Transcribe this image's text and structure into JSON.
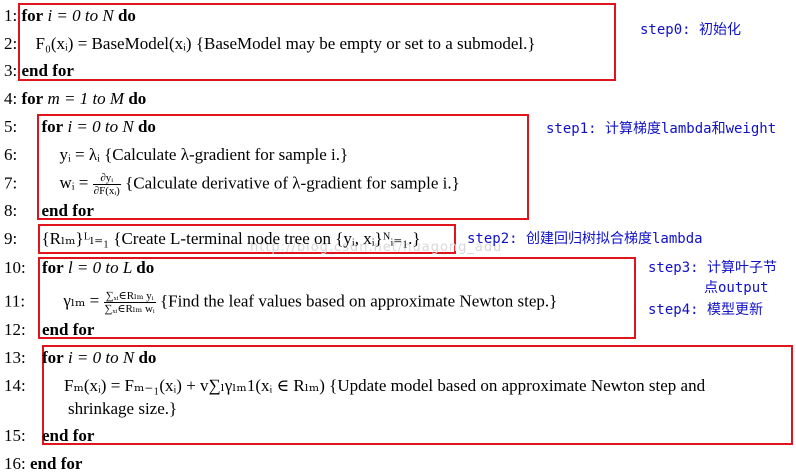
{
  "lines": [
    {
      "num": "1:",
      "text_kw1": "for",
      "text_body": " i = 0 to N ",
      "text_kw2": "do"
    },
    {
      "num": "2:",
      "text_body": "F₀(xᵢ) = BaseModel(xᵢ) {BaseModel may be empty or set to a submodel.}"
    },
    {
      "num": "3:",
      "text_kw1": "end for"
    },
    {
      "num": "4:",
      "text_kw1": "for",
      "text_body": " m = 1 to M ",
      "text_kw2": "do"
    },
    {
      "num": "5:",
      "text_kw1": "for",
      "text_body": " i  = 0 to N ",
      "text_kw2": "do"
    },
    {
      "num": "6:",
      "text_body": "yᵢ = λᵢ {Calculate λ-gradient for sample i.}"
    },
    {
      "num": "7:",
      "text_pre": "wᵢ = ",
      "frac_num": "∂yᵢ",
      "frac_den": "∂F(xᵢ)",
      "text_post": " {Calculate derivative of λ-gradient for sample i.}"
    },
    {
      "num": "8:",
      "text_kw1": "end for"
    },
    {
      "num": "9:",
      "text_body": "{Rₗₘ}ᴸₗ₌₁ {Create L-terminal node tree on {yᵢ, xᵢ}ᴺᵢ₌₁.}"
    },
    {
      "num": "10:",
      "text_kw1": "for",
      "text_body": " l = 0 to L ",
      "text_kw2": "do"
    },
    {
      "num": "11:",
      "text_pre": "γₗₘ = ",
      "frac_num": "∑ₓᵢ∈Rₗₘ yᵢ",
      "frac_den": "∑ₓᵢ∈Rₗₘ wᵢ",
      "text_post": " {Find the leaf values based on approximate Newton step.}"
    },
    {
      "num": "12:",
      "text_kw1": "end for"
    },
    {
      "num": "13:",
      "text_kw1": "for",
      "text_body": " i = 0 to N ",
      "text_kw2": "do"
    },
    {
      "num": "14:",
      "text_body": "Fₘ(xᵢ) = Fₘ₋₁(xᵢ) + v∑ₗγₗₘ1(xᵢ ∈ Rₗₘ) {Update model based on approximate Newton step and",
      "text_cont": "shrinkage size.}"
    },
    {
      "num": "15:",
      "text_kw1": "end for"
    },
    {
      "num": "16:",
      "text_kw1": "end for"
    }
  ],
  "notes": {
    "step0": "step0: 初始化",
    "step1": "step1: 计算梯度lambda和weight",
    "step2": "step2: 创建回归树拟合梯度lambda",
    "step3_a": "step3: 计算叶子节",
    "step3_b": "点output",
    "step4": "step4: 模型更新"
  },
  "watermark": "http://blog.csdn.net/huagong_adu",
  "colors": {
    "box": "#e0141c",
    "note": "#1010c8"
  }
}
